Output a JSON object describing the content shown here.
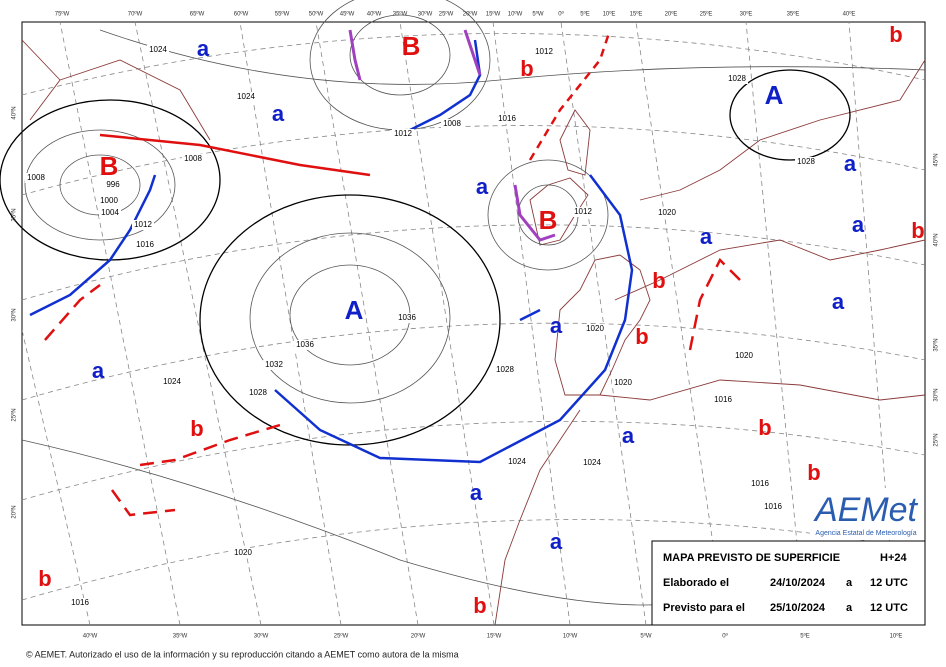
{
  "map": {
    "top_labels": [
      "75ºW",
      "70ºW",
      "65ºW",
      "60ºW",
      "55ºW",
      "50ºW",
      "45ºW",
      "40ºW",
      "35ºW",
      "30ºW",
      "25ºW",
      "20ºW",
      "15ºW",
      "10ºW",
      "5ºW",
      "0º",
      "5ºE",
      "10ºE",
      "15ºE",
      "20ºE",
      "25ºE",
      "30ºE",
      "35ºE",
      "40ºE"
    ],
    "bottom_labels": [
      "40ºW",
      "35ºW",
      "30ºW",
      "25ºW",
      "20ºW",
      "15ºW",
      "10ºW",
      "5ºW",
      "0º",
      "5ºE",
      "10ºE"
    ],
    "left_labels": [
      "40ºN",
      "35ºN",
      "30ºN",
      "25ºN",
      "20ºN"
    ],
    "right_labels": [
      "45ºN",
      "40ºN",
      "35ºN",
      "30ºN",
      "25ºN"
    ],
    "highs": [
      "A",
      "A"
    ],
    "lows": [
      "B",
      "B",
      "B"
    ],
    "minor_highs": [
      "a",
      "a",
      "a",
      "a",
      "a",
      "a",
      "a",
      "a",
      "a",
      "a",
      "a",
      "a"
    ],
    "minor_lows": [
      "b",
      "b",
      "b",
      "b",
      "b",
      "b",
      "b",
      "b",
      "b",
      "b"
    ],
    "isobar_labels": [
      "1024",
      "1024",
      "1024",
      "1008",
      "1008",
      "1008",
      "996",
      "1000",
      "1004",
      "1012",
      "1012",
      "1012",
      "1012",
      "1016",
      "1016",
      "1016",
      "1016",
      "1036",
      "1036",
      "1032",
      "1028",
      "1028",
      "1028",
      "1028",
      "1020",
      "1020",
      "1020",
      "1020",
      "1020",
      "1024",
      "1024",
      "1016",
      "1016"
    ]
  },
  "info_box": {
    "title": "MAPA PREVISTO DE SUPERFICIE",
    "lead": "H+24",
    "rows": [
      [
        "Elaborado el",
        "24/10/2024",
        "a",
        "12 UTC"
      ],
      [
        "Previsto para el",
        "25/10/2024",
        "a",
        "12 UTC"
      ]
    ]
  },
  "logo": {
    "name": "AEMet",
    "agency": "Agencia Estatal de Meteorología"
  },
  "footer": "© AEMET. Autorizado el uso de la información y su reproducción citando a AEMET como autora de la misma"
}
